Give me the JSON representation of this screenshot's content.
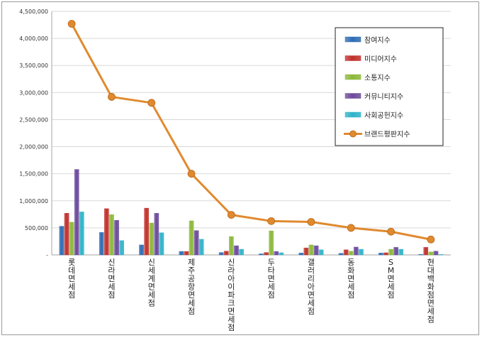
{
  "chart_data": {
    "type": "bar",
    "categories": [
      "롯데면세점",
      "신라면세점",
      "신세계면세점",
      "제주공항면세점",
      "신라아이파크면세점",
      "두타면세점",
      "갤러리아면세점",
      "동화면세점",
      "SM면세점",
      "현대백화점면세점"
    ],
    "series": [
      {
        "name": "참여지수",
        "type": "bar",
        "color": "#2e6db4",
        "values": [
          530000,
          415000,
          185000,
          65000,
          45000,
          20000,
          35000,
          30000,
          35000,
          10000
        ]
      },
      {
        "name": "미디어지수",
        "type": "bar",
        "color": "#c0302b",
        "values": [
          770000,
          855000,
          865000,
          65000,
          70000,
          45000,
          130000,
          95000,
          40000,
          140000
        ]
      },
      {
        "name": "소통지수",
        "type": "bar",
        "color": "#8cb83a",
        "values": [
          605000,
          745000,
          590000,
          630000,
          340000,
          445000,
          185000,
          70000,
          105000,
          55000
        ]
      },
      {
        "name": "커뮤니티지수",
        "type": "bar",
        "color": "#6a4a9a",
        "values": [
          1580000,
          640000,
          770000,
          450000,
          170000,
          65000,
          170000,
          145000,
          140000,
          70000
        ]
      },
      {
        "name": "사회공헌지수",
        "type": "bar",
        "color": "#2fb3c8",
        "values": [
          795000,
          265000,
          410000,
          290000,
          105000,
          40000,
          95000,
          105000,
          105000,
          10000
        ]
      },
      {
        "name": "브랜드평판지수",
        "type": "line",
        "color": "#e08a2e",
        "values": [
          4270000,
          2920000,
          2810000,
          1500000,
          740000,
          625000,
          610000,
          500000,
          430000,
          285000
        ]
      }
    ],
    "ylim": [
      0,
      4500000
    ],
    "yticks": [
      "-",
      "500,000",
      "1,000,000",
      "1,500,000",
      "2,000,000",
      "2,500,000",
      "3,000,000",
      "3,500,000",
      "4,000,000",
      "4,500,000"
    ],
    "grid": true,
    "legend_position": "top-right"
  }
}
